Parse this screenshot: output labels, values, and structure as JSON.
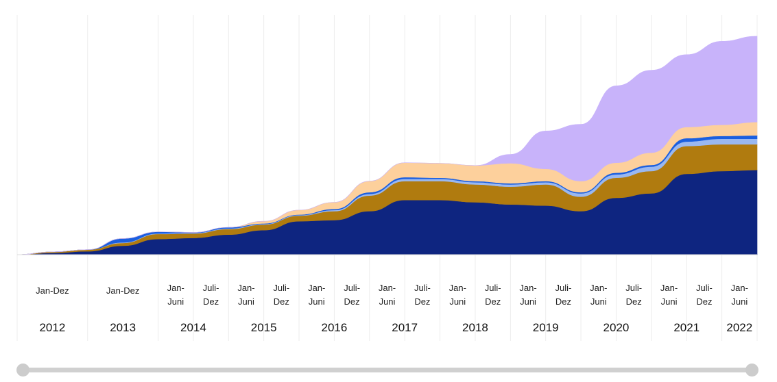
{
  "chart_data": {
    "type": "area",
    "stacked": true,
    "title": "",
    "xlabel": "",
    "ylabel": "",
    "y_axis_labels": "none",
    "grid": "vertical lines between periods",
    "periods": [
      {
        "key": "2012",
        "label_line1": "Jan-Dez",
        "label_line2": "",
        "year": "2012"
      },
      {
        "key": "2013",
        "label_line1": "Jan-Dez",
        "label_line2": "",
        "year": "2013"
      },
      {
        "key": "2014-H1",
        "label_line1": "Jan-",
        "label_line2": "Juni",
        "year": "2014"
      },
      {
        "key": "2014-H2",
        "label_line1": "Juli-",
        "label_line2": "Dez",
        "year": ""
      },
      {
        "key": "2015-H1",
        "label_line1": "Jan-",
        "label_line2": "Juni",
        "year": "2015"
      },
      {
        "key": "2015-H2",
        "label_line1": "Juli-",
        "label_line2": "Dez",
        "year": ""
      },
      {
        "key": "2016-H1",
        "label_line1": "Jan-",
        "label_line2": "Juni",
        "year": "2016"
      },
      {
        "key": "2016-H2",
        "label_line1": "Juli-",
        "label_line2": "Dez",
        "year": ""
      },
      {
        "key": "2017-H1",
        "label_line1": "Jan-",
        "label_line2": "Juni",
        "year": "2017"
      },
      {
        "key": "2017-H2",
        "label_line1": "Juli-",
        "label_line2": "Dez",
        "year": ""
      },
      {
        "key": "2018-H1",
        "label_line1": "Jan-",
        "label_line2": "Juni",
        "year": "2018"
      },
      {
        "key": "2018-H2",
        "label_line1": "Juli-",
        "label_line2": "Dez",
        "year": ""
      },
      {
        "key": "2019-H1",
        "label_line1": "Jan-",
        "label_line2": "Juni",
        "year": "2019"
      },
      {
        "key": "2019-H2",
        "label_line1": "Juli-",
        "label_line2": "Dez",
        "year": ""
      },
      {
        "key": "2020-H1",
        "label_line1": "Jan-",
        "label_line2": "Juni",
        "year": "2020"
      },
      {
        "key": "2020-H2",
        "label_line1": "Juli-",
        "label_line2": "Dez",
        "year": ""
      },
      {
        "key": "2021-H1",
        "label_line1": "Jan-",
        "label_line2": "Juni",
        "year": "2021"
      },
      {
        "key": "2021-H2",
        "label_line1": "Juli-",
        "label_line2": "Dez",
        "year": ""
      },
      {
        "key": "2022-H1",
        "label_line1": "Jan-",
        "label_line2": "Juni",
        "year": "2022"
      }
    ],
    "series_time": [
      "2012-01",
      "2012-07",
      "2013-01",
      "2013-07",
      "2014-01",
      "2014-07",
      "2015-01",
      "2015-07",
      "2016-01",
      "2016-07",
      "2017-01",
      "2017-07",
      "2018-01",
      "2018-07",
      "2019-01",
      "2019-07",
      "2020-01",
      "2020-07",
      "2021-01",
      "2021-07",
      "2022-01",
      "2022-07"
    ],
    "series": [
      {
        "color": "#0e2580",
        "values": [
          0,
          3,
          6,
          16,
          28,
          30,
          36,
          44,
          60,
          62,
          78,
          98,
          98,
          94,
          90,
          88,
          78,
          102,
          110,
          145,
          150,
          152
        ]
      },
      {
        "color": "#b07b0f",
        "values": [
          0,
          2,
          3,
          5,
          9,
          8,
          10,
          10,
          10,
          16,
          28,
          34,
          34,
          32,
          32,
          38,
          26,
          36,
          40,
          50,
          48,
          46
        ]
      },
      {
        "color": "#9ab8f0",
        "values": [
          0,
          0,
          0,
          1,
          1,
          1,
          1,
          1,
          1,
          2,
          3,
          4,
          4,
          4,
          4,
          4,
          6,
          6,
          8,
          8,
          10,
          10
        ]
      },
      {
        "color": "#1a5fe0",
        "values": [
          0,
          0,
          0,
          7,
          3,
          1,
          2,
          1,
          1,
          2,
          3,
          3,
          2,
          2,
          2,
          2,
          2,
          3,
          3,
          6,
          5,
          6
        ]
      },
      {
        "color": "#fdd09c",
        "values": [
          0,
          0,
          0,
          0,
          0,
          0,
          0,
          4,
          8,
          12,
          20,
          26,
          26,
          28,
          36,
          22,
          20,
          18,
          22,
          20,
          20,
          24
        ]
      },
      {
        "color": "#c8b3fa",
        "values": [
          0,
          0,
          0,
          0,
          0,
          0,
          0,
          0,
          0,
          0,
          0,
          0,
          0,
          0,
          16,
          68,
          102,
          138,
          148,
          130,
          150,
          154
        ]
      }
    ],
    "y_range": [
      0,
      430
    ]
  },
  "slider": {
    "range": [
      0,
      1
    ]
  }
}
